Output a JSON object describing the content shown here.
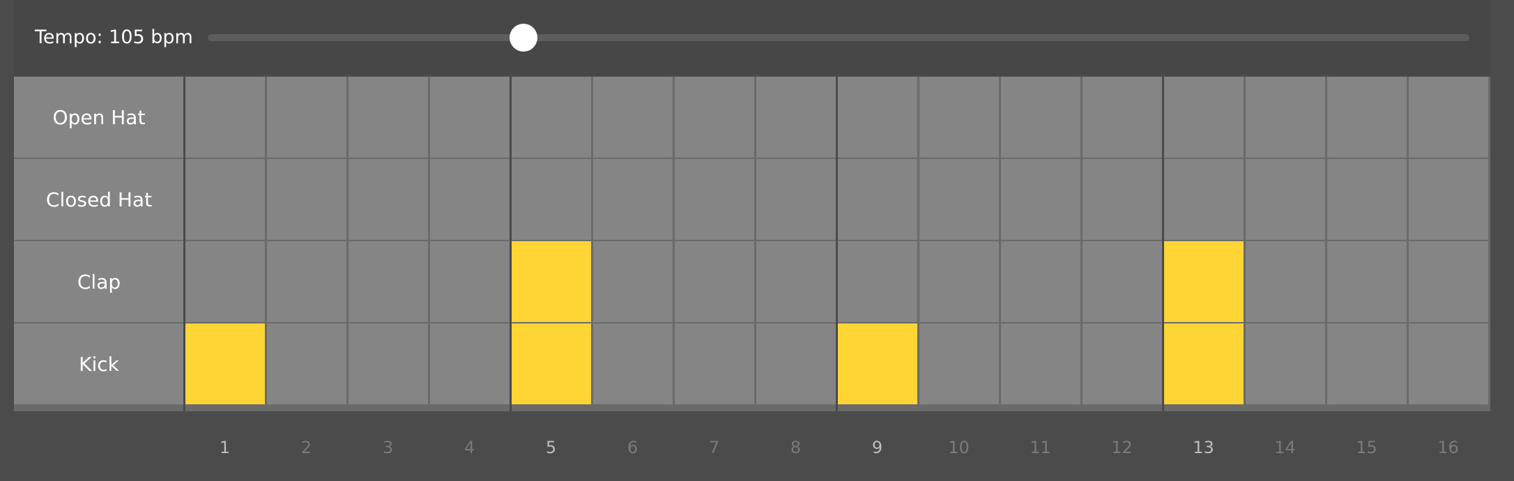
{
  "tempo": {
    "label": "Tempo: 105 bpm",
    "value": 105,
    "min": 60,
    "max": 240
  },
  "tracks": [
    {
      "name": "Open Hat",
      "steps": [
        0,
        0,
        0,
        0,
        0,
        0,
        0,
        0,
        0,
        0,
        0,
        0,
        0,
        0,
        0,
        0
      ]
    },
    {
      "name": "Closed Hat",
      "steps": [
        0,
        0,
        0,
        0,
        0,
        0,
        0,
        0,
        0,
        0,
        0,
        0,
        0,
        0,
        0,
        0
      ]
    },
    {
      "name": "Clap",
      "steps": [
        0,
        0,
        0,
        0,
        1,
        0,
        0,
        0,
        0,
        0,
        0,
        0,
        1,
        0,
        0,
        0
      ]
    },
    {
      "name": "Kick",
      "steps": [
        1,
        0,
        0,
        0,
        1,
        0,
        0,
        0,
        1,
        0,
        0,
        0,
        1,
        0,
        0,
        0
      ]
    }
  ],
  "step_labels": [
    "1",
    "2",
    "3",
    "4",
    "5",
    "6",
    "7",
    "8",
    "9",
    "10",
    "11",
    "12",
    "13",
    "14",
    "15",
    "16"
  ],
  "colors": {
    "active_step": "#ffd435",
    "inactive_step": "#858585",
    "background": "#4b4b4b"
  }
}
